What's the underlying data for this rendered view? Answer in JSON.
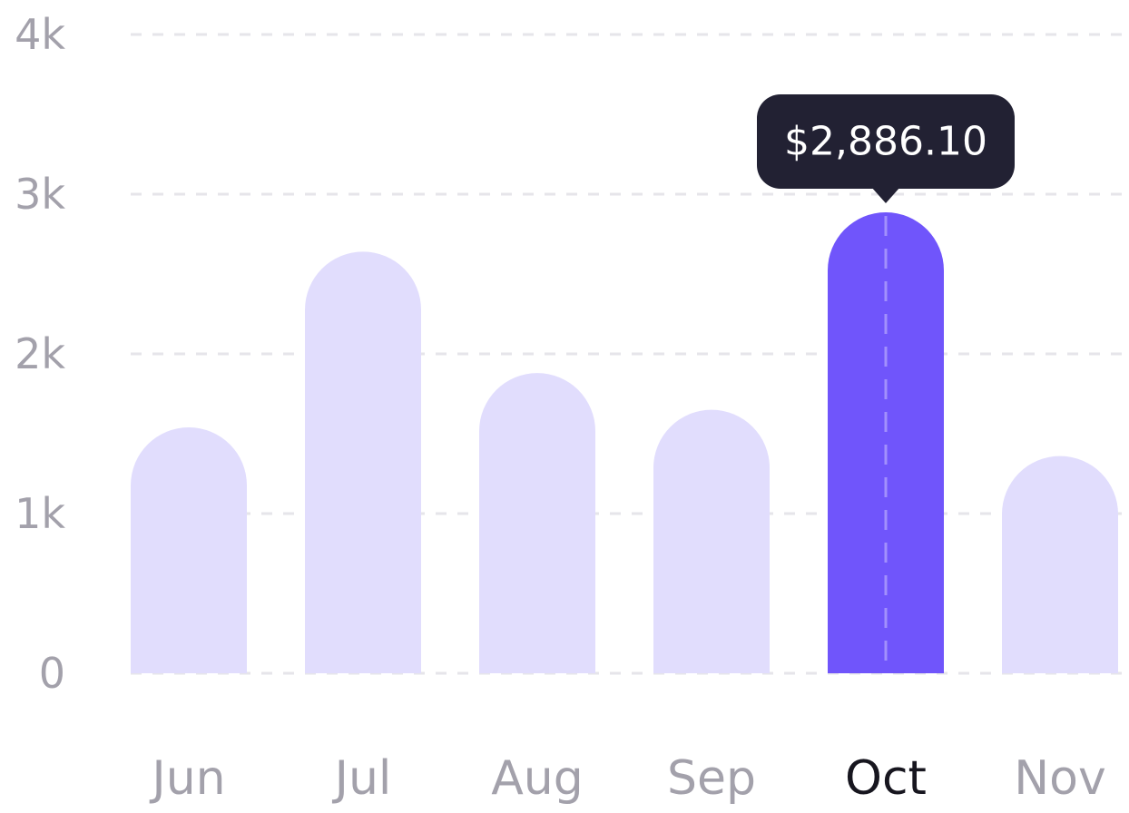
{
  "chart_data": {
    "type": "bar",
    "categories": [
      "Jun",
      "Jul",
      "Aug",
      "Sep",
      "Oct",
      "Nov"
    ],
    "values": [
      1540,
      2640,
      1880,
      1650,
      2886.1,
      1360
    ],
    "ylim": [
      0,
      4000
    ],
    "yticks": [
      0,
      1000,
      2000,
      3000,
      4000
    ],
    "ytick_labels": [
      "0",
      "1k",
      "2k",
      "3k",
      "4k"
    ],
    "highlighted_category": "Oct",
    "tooltip_text": "$2,886.10",
    "grid": true,
    "colors": {
      "bar": "#e1ddfd",
      "bar_highlight": "#7055fb",
      "tooltip_bg": "#222133",
      "tick_text": "#a3a1ab",
      "tick_text_active": "#17161f"
    }
  }
}
